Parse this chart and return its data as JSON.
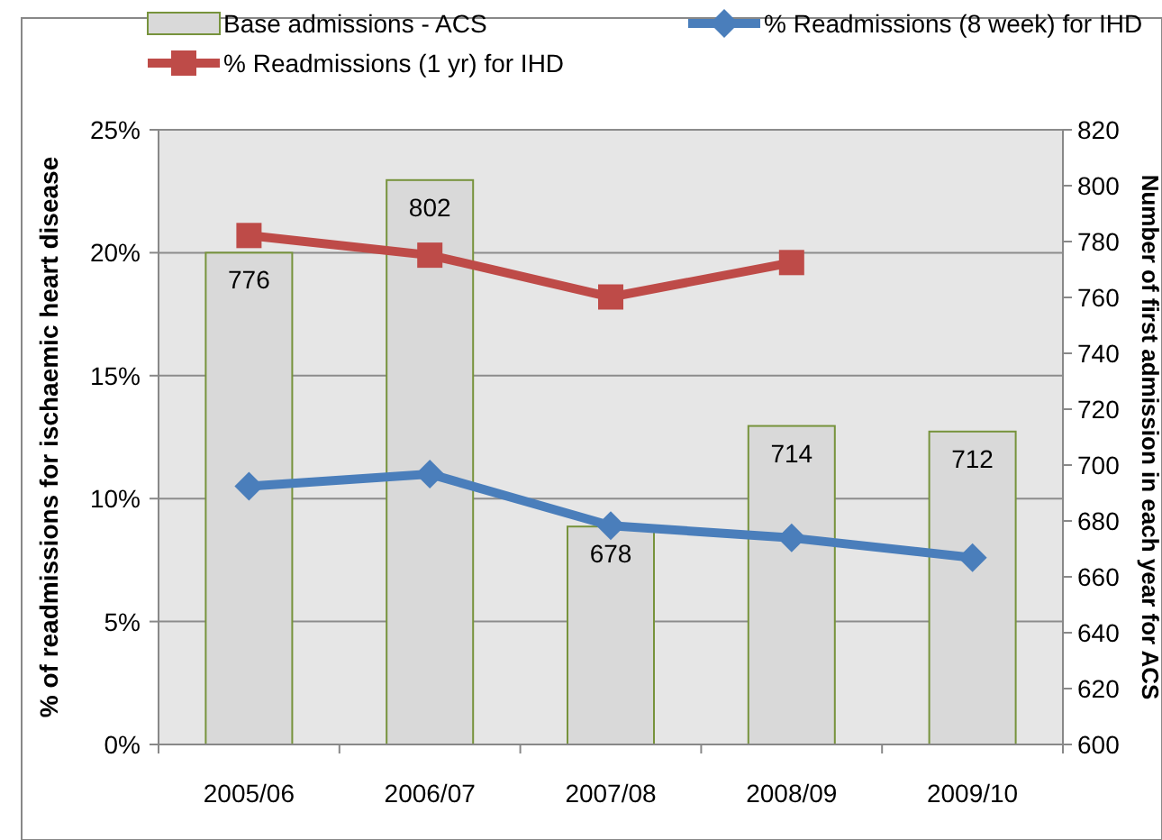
{
  "chart_data": {
    "type": "bar",
    "categories": [
      "2005/06",
      "2006/07",
      "2007/08",
      "2008/09",
      "2009/10"
    ],
    "ylabel": "% of readmissions for ischaemic heart disease",
    "y2label": "Number of first admission in each year for ACS",
    "ylim": [
      0,
      25
    ],
    "yticks": [
      {
        "value": 0,
        "label": "0%"
      },
      {
        "value": 5,
        "label": "5%"
      },
      {
        "value": 10,
        "label": "10%"
      },
      {
        "value": 15,
        "label": "15%"
      },
      {
        "value": 20,
        "label": "20%"
      },
      {
        "value": 25,
        "label": "25%"
      }
    ],
    "y2lim": [
      600,
      820
    ],
    "y2ticks": [
      600,
      620,
      640,
      660,
      680,
      700,
      720,
      740,
      760,
      780,
      800,
      820
    ],
    "grid": "y",
    "legend": "top",
    "marker": "square",
    "series": [
      {
        "name": "Base admissions  - ACS",
        "axis": "y2",
        "color": "#d9d9d9",
        "values": [
          776,
          802,
          678,
          714,
          712
        ],
        "value_labels": [
          "776",
          "802",
          "678",
          "714",
          "712"
        ]
      },
      {
        "name": "% Readmissions (8 week) for IHD",
        "type": "line",
        "marker": "diamond",
        "color": "#4a7ebb",
        "values": [
          10.5,
          11.0,
          8.9,
          8.4,
          7.6
        ]
      },
      {
        "name": "% Readmissions (1 yr) for IHD",
        "type": "line",
        "color": "#be4b48",
        "values": [
          20.7,
          19.9,
          18.2,
          19.6,
          null
        ]
      }
    ]
  }
}
